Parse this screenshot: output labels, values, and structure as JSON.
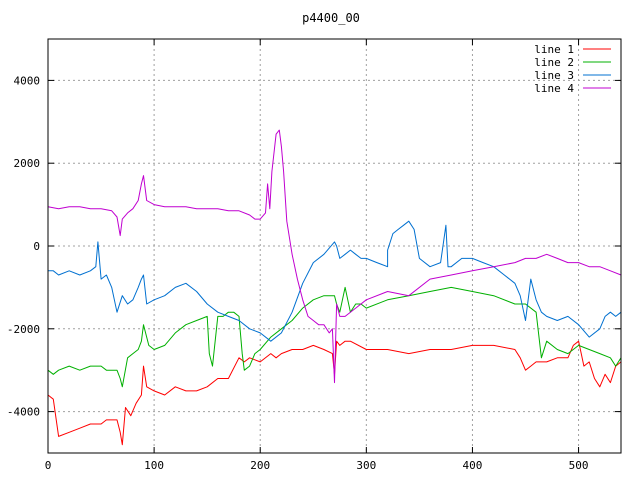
{
  "chart_data": {
    "type": "line",
    "title": "p4400_00",
    "xlabel": "",
    "ylabel": "",
    "xlim": [
      0,
      540
    ],
    "ylim": [
      -5000,
      5000
    ],
    "xticks": [
      0,
      100,
      200,
      300,
      400,
      500
    ],
    "yticks": [
      -4000,
      -2000,
      0,
      2000,
      4000
    ],
    "grid": true,
    "legend_position": "top-right",
    "series": [
      {
        "name": "line 1",
        "color": "#ff0000",
        "x": [
          0,
          5,
          10,
          20,
          30,
          40,
          50,
          55,
          60,
          65,
          68,
          70,
          73,
          78,
          83,
          88,
          90,
          93,
          100,
          110,
          120,
          130,
          140,
          150,
          160,
          170,
          180,
          185,
          190,
          200,
          210,
          215,
          220,
          230,
          240,
          250,
          260,
          268,
          270,
          272,
          275,
          280,
          285,
          300,
          320,
          340,
          360,
          380,
          400,
          420,
          440,
          445,
          450,
          455,
          460,
          470,
          480,
          490,
          495,
          500,
          505,
          510,
          515,
          520,
          525,
          530,
          535,
          540
        ],
        "y": [
          -3600,
          -3700,
          -4600,
          -4500,
          -4400,
          -4300,
          -4300,
          -4200,
          -4200,
          -4200,
          -4500,
          -4800,
          -3900,
          -4100,
          -3800,
          -3600,
          -2900,
          -3400,
          -3500,
          -3600,
          -3400,
          -3500,
          -3500,
          -3400,
          -3200,
          -3200,
          -2700,
          -2800,
          -2700,
          -2800,
          -2600,
          -2700,
          -2600,
          -2500,
          -2500,
          -2400,
          -2500,
          -2600,
          -3100,
          -2300,
          -2400,
          -2300,
          -2300,
          -2500,
          -2500,
          -2600,
          -2500,
          -2500,
          -2400,
          -2400,
          -2500,
          -2700,
          -3000,
          -2900,
          -2800,
          -2800,
          -2700,
          -2700,
          -2400,
          -2300,
          -2900,
          -2800,
          -3200,
          -3400,
          -3100,
          -3300,
          -2900,
          -2800
        ]
      },
      {
        "name": "line 2",
        "color": "#00b000",
        "x": [
          0,
          5,
          10,
          20,
          30,
          40,
          50,
          55,
          60,
          65,
          68,
          70,
          75,
          80,
          85,
          88,
          90,
          95,
          100,
          110,
          120,
          130,
          140,
          150,
          152,
          155,
          160,
          165,
          170,
          175,
          180,
          183,
          185,
          190,
          195,
          200,
          210,
          220,
          230,
          240,
          250,
          260,
          270,
          272,
          275,
          280,
          285,
          290,
          295,
          300,
          320,
          340,
          360,
          380,
          400,
          420,
          440,
          450,
          460,
          465,
          470,
          480,
          490,
          500,
          510,
          520,
          530,
          535,
          540
        ],
        "y": [
          -3000,
          -3100,
          -3000,
          -2900,
          -3000,
          -2900,
          -2900,
          -3000,
          -3000,
          -3000,
          -3200,
          -3400,
          -2700,
          -2600,
          -2500,
          -2300,
          -1900,
          -2400,
          -2500,
          -2400,
          -2100,
          -1900,
          -1800,
          -1700,
          -2600,
          -2900,
          -1700,
          -1700,
          -1600,
          -1600,
          -1700,
          -2600,
          -3000,
          -2900,
          -2600,
          -2500,
          -2200,
          -2000,
          -1800,
          -1500,
          -1300,
          -1200,
          -1200,
          -1400,
          -1600,
          -1000,
          -1600,
          -1400,
          -1400,
          -1500,
          -1300,
          -1200,
          -1100,
          -1000,
          -1100,
          -1200,
          -1400,
          -1400,
          -1600,
          -2700,
          -2300,
          -2500,
          -2600,
          -2400,
          -2500,
          -2600,
          -2700,
          -2900,
          -2700
        ]
      },
      {
        "name": "line 3",
        "color": "#0070d0",
        "x": [
          0,
          5,
          10,
          20,
          30,
          40,
          45,
          47,
          50,
          55,
          60,
          65,
          70,
          75,
          80,
          85,
          88,
          90,
          93,
          100,
          110,
          120,
          130,
          140,
          150,
          160,
          170,
          180,
          190,
          200,
          210,
          220,
          230,
          240,
          250,
          260,
          270,
          272,
          275,
          280,
          285,
          290,
          295,
          300,
          310,
          320,
          320,
          325,
          330,
          335,
          340,
          345,
          350,
          360,
          370,
          375,
          377,
          380,
          390,
          400,
          410,
          420,
          430,
          440,
          445,
          450,
          455,
          460,
          465,
          470,
          480,
          490,
          500,
          510,
          520,
          525,
          530,
          535,
          540
        ],
        "y": [
          -600,
          -600,
          -700,
          -600,
          -700,
          -600,
          -500,
          100,
          -800,
          -700,
          -1000,
          -1600,
          -1200,
          -1400,
          -1300,
          -1000,
          -800,
          -700,
          -1400,
          -1300,
          -1200,
          -1000,
          -900,
          -1100,
          -1400,
          -1600,
          -1700,
          -1800,
          -2000,
          -2100,
          -2300,
          -2100,
          -1600,
          -900,
          -400,
          -200,
          100,
          0,
          -300,
          -200,
          -100,
          -200,
          -300,
          -300,
          -400,
          -500,
          -100,
          300,
          400,
          500,
          600,
          400,
          -300,
          -500,
          -400,
          500,
          -500,
          -500,
          -300,
          -300,
          -400,
          -500,
          -700,
          -900,
          -1200,
          -1800,
          -800,
          -1300,
          -1600,
          -1700,
          -1800,
          -1700,
          -1900,
          -2200,
          -2000,
          -1700,
          -1600,
          -1700,
          -1600
        ]
      },
      {
        "name": "line 4",
        "color": "#c000d0",
        "x": [
          0,
          10,
          20,
          30,
          40,
          50,
          60,
          65,
          68,
          70,
          75,
          80,
          85,
          88,
          90,
          93,
          100,
          110,
          120,
          130,
          140,
          150,
          160,
          170,
          180,
          190,
          195,
          200,
          205,
          207,
          209,
          211,
          215,
          218,
          220,
          222,
          225,
          230,
          235,
          240,
          245,
          250,
          255,
          260,
          265,
          268,
          270,
          272,
          275,
          280,
          290,
          300,
          320,
          340,
          360,
          380,
          400,
          420,
          440,
          450,
          460,
          470,
          480,
          490,
          500,
          510,
          520,
          530,
          540
        ],
        "y": [
          950,
          900,
          950,
          950,
          900,
          900,
          850,
          700,
          250,
          650,
          800,
          900,
          1100,
          1500,
          1700,
          1100,
          1000,
          950,
          950,
          950,
          900,
          900,
          900,
          850,
          850,
          750,
          650,
          650,
          800,
          1500,
          900,
          1800,
          2700,
          2800,
          2400,
          1800,
          600,
          -200,
          -800,
          -1300,
          -1700,
          -1800,
          -1900,
          -1900,
          -2100,
          -2000,
          -3300,
          -1400,
          -1700,
          -1700,
          -1500,
          -1300,
          -1100,
          -1200,
          -800,
          -700,
          -600,
          -500,
          -400,
          -300,
          -300,
          -200,
          -300,
          -400,
          -400,
          -500,
          -500,
          -600,
          -700
        ]
      }
    ]
  }
}
